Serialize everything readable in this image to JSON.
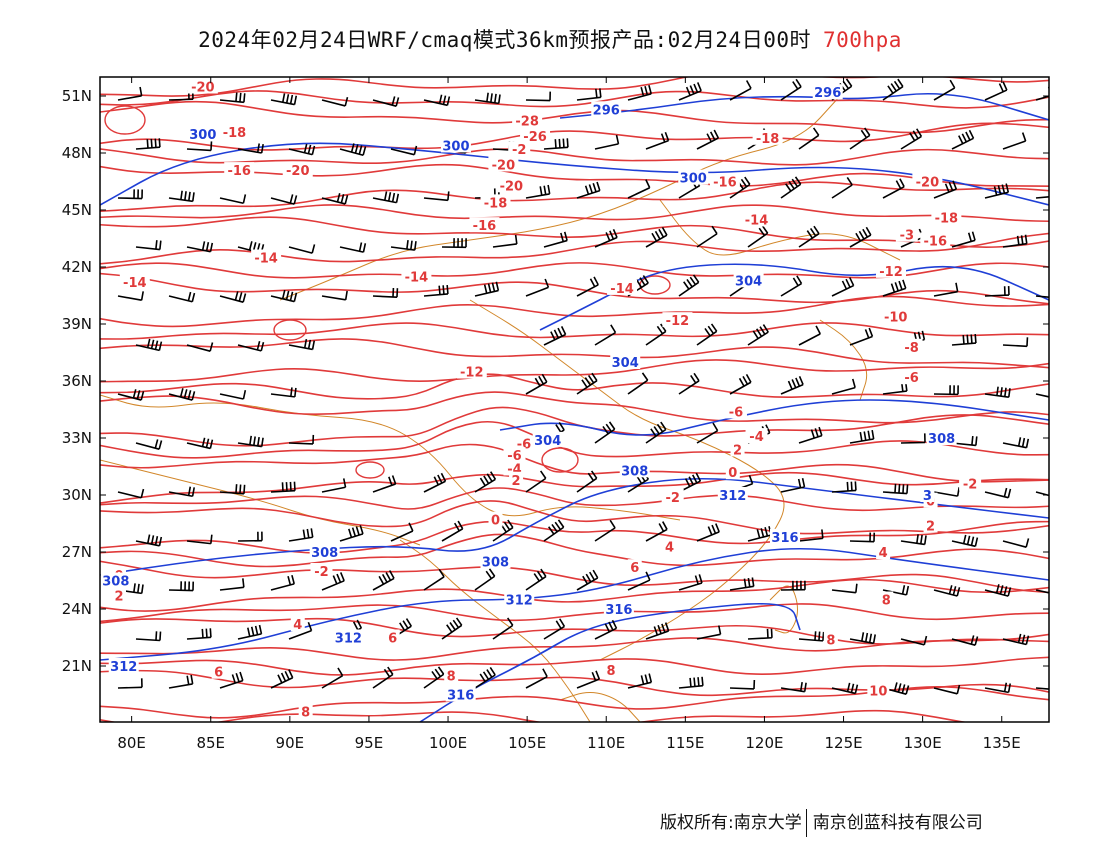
{
  "header": {
    "title": "2024年02月24日WRF/cmaq模式36km预报产品:02月24日00时",
    "level": "700hpa",
    "level_color": "#e03030"
  },
  "map": {
    "lon_ticks": [
      "80E",
      "85E",
      "90E",
      "95E",
      "100E",
      "105E",
      "110E",
      "115E",
      "120E",
      "125E",
      "130E",
      "135E"
    ],
    "lat_ticks": [
      "51N",
      "48N",
      "45N",
      "42N",
      "39N",
      "36N",
      "33N",
      "30N",
      "27N",
      "24N",
      "21N"
    ],
    "temperature_color": "#e03a3a",
    "height_color": "#1f3fd6",
    "border_color": "#d2872a",
    "wind_color": "#000000",
    "temperature_labels": [
      {
        "text": "-20",
        "lon": 84.5,
        "lat": 51.5
      },
      {
        "text": "-18",
        "lon": 86.5,
        "lat": 49.1
      },
      {
        "text": "-16",
        "lon": 86.8,
        "lat": 47.1
      },
      {
        "text": "-20",
        "lon": 90.5,
        "lat": 47.1
      },
      {
        "text": "-28",
        "lon": 105.0,
        "lat": 49.7
      },
      {
        "text": "-26",
        "lon": 105.5,
        "lat": 48.9
      },
      {
        "text": "-2",
        "lon": 104.5,
        "lat": 48.2
      },
      {
        "text": "-20",
        "lon": 103.5,
        "lat": 47.4
      },
      {
        "text": "-20",
        "lon": 104.0,
        "lat": 46.3
      },
      {
        "text": "-18",
        "lon": 103.0,
        "lat": 45.4
      },
      {
        "text": "-16",
        "lon": 102.3,
        "lat": 44.2
      },
      {
        "text": "-18",
        "lon": 120.2,
        "lat": 48.8
      },
      {
        "text": "-16",
        "lon": 117.5,
        "lat": 46.5
      },
      {
        "text": "-14",
        "lon": 119.5,
        "lat": 44.5
      },
      {
        "text": "-20",
        "lon": 130.3,
        "lat": 46.5
      },
      {
        "text": "-18",
        "lon": 131.5,
        "lat": 44.6
      },
      {
        "text": "-16",
        "lon": 130.8,
        "lat": 43.4
      },
      {
        "text": "-3",
        "lon": 129.0,
        "lat": 43.7
      },
      {
        "text": "-14",
        "lon": 88.5,
        "lat": 42.5
      },
      {
        "text": "-14",
        "lon": 80.2,
        "lat": 41.2
      },
      {
        "text": "-14",
        "lon": 98.0,
        "lat": 41.5
      },
      {
        "text": "-14",
        "lon": 111.0,
        "lat": 40.9
      },
      {
        "text": "-12",
        "lon": 128.0,
        "lat": 41.8
      },
      {
        "text": "-12",
        "lon": 114.5,
        "lat": 39.2
      },
      {
        "text": "-10",
        "lon": 128.3,
        "lat": 39.4
      },
      {
        "text": "-8",
        "lon": 129.3,
        "lat": 37.8
      },
      {
        "text": "-6",
        "lon": 129.3,
        "lat": 36.2
      },
      {
        "text": "-12",
        "lon": 101.5,
        "lat": 36.5
      },
      {
        "text": "-6",
        "lon": 118.2,
        "lat": 34.4
      },
      {
        "text": "-4",
        "lon": 119.5,
        "lat": 33.1
      },
      {
        "text": "-6",
        "lon": 104.8,
        "lat": 32.7
      },
      {
        "text": "-6",
        "lon": 104.2,
        "lat": 32.1
      },
      {
        "text": "-4",
        "lon": 104.2,
        "lat": 31.4
      },
      {
        "text": "2",
        "lon": 104.3,
        "lat": 30.8
      },
      {
        "text": "2",
        "lon": 118.3,
        "lat": 32.4
      },
      {
        "text": "0",
        "lon": 118.0,
        "lat": 31.2
      },
      {
        "text": "-2",
        "lon": 133.0,
        "lat": 30.6
      },
      {
        "text": "-2",
        "lon": 114.2,
        "lat": 29.9
      },
      {
        "text": "0",
        "lon": 130.5,
        "lat": 29.7
      },
      {
        "text": "0",
        "lon": 103.0,
        "lat": 28.7
      },
      {
        "text": "2",
        "lon": 130.5,
        "lat": 28.4
      },
      {
        "text": "4",
        "lon": 114.0,
        "lat": 27.3
      },
      {
        "text": "4",
        "lon": 127.5,
        "lat": 27.0
      },
      {
        "text": "6",
        "lon": 111.8,
        "lat": 26.2
      },
      {
        "text": "-2",
        "lon": 92.0,
        "lat": 26.0
      },
      {
        "text": "0",
        "lon": 79.2,
        "lat": 25.8
      },
      {
        "text": "2",
        "lon": 79.2,
        "lat": 24.7
      },
      {
        "text": "8",
        "lon": 127.7,
        "lat": 24.5
      },
      {
        "text": "4",
        "lon": 90.5,
        "lat": 23.2
      },
      {
        "text": "6",
        "lon": 96.5,
        "lat": 22.5
      },
      {
        "text": "8",
        "lon": 124.2,
        "lat": 22.4
      },
      {
        "text": "8",
        "lon": 100.2,
        "lat": 20.5
      },
      {
        "text": "8",
        "lon": 110.3,
        "lat": 20.8
      },
      {
        "text": "6",
        "lon": 85.5,
        "lat": 20.7
      },
      {
        "text": "10",
        "lon": 127.2,
        "lat": 19.7
      },
      {
        "text": "8",
        "lon": 91.0,
        "lat": 18.6
      }
    ],
    "height_labels": [
      {
        "text": "300",
        "lon": 84.5,
        "lat": 49.0
      },
      {
        "text": "300",
        "lon": 100.5,
        "lat": 48.4
      },
      {
        "text": "296",
        "lon": 110.0,
        "lat": 50.3
      },
      {
        "text": "296",
        "lon": 124.0,
        "lat": 51.2
      },
      {
        "text": "300",
        "lon": 115.5,
        "lat": 46.7
      },
      {
        "text": "304",
        "lon": 119.0,
        "lat": 41.3
      },
      {
        "text": "304",
        "lon": 111.2,
        "lat": 37.0
      },
      {
        "text": "304",
        "lon": 106.3,
        "lat": 32.9
      },
      {
        "text": "308",
        "lon": 111.8,
        "lat": 31.3
      },
      {
        "text": "312",
        "lon": 118.0,
        "lat": 30.0
      },
      {
        "text": "308",
        "lon": 92.2,
        "lat": 27.0
      },
      {
        "text": "308",
        "lon": 103.0,
        "lat": 26.5
      },
      {
        "text": "308",
        "lon": 79.0,
        "lat": 25.5
      },
      {
        "text": "312",
        "lon": 104.5,
        "lat": 24.5
      },
      {
        "text": "316",
        "lon": 110.8,
        "lat": 24.0
      },
      {
        "text": "316",
        "lon": 121.3,
        "lat": 27.8
      },
      {
        "text": "312",
        "lon": 93.7,
        "lat": 22.5
      },
      {
        "text": "312",
        "lon": 79.5,
        "lat": 21.0
      },
      {
        "text": "316",
        "lon": 100.8,
        "lat": 19.5
      },
      {
        "text": "308",
        "lon": 131.2,
        "lat": 33.0
      },
      {
        "text": "3",
        "lon": 130.3,
        "lat": 30.0
      }
    ]
  },
  "footer": {
    "left": "版权所有:南京大学",
    "right": "南京创蓝科技有限公司"
  }
}
